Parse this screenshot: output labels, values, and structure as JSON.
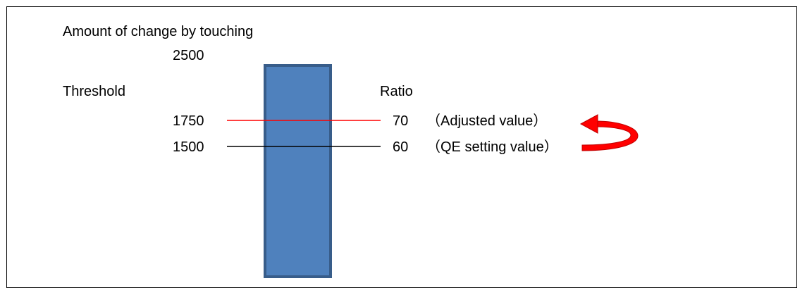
{
  "title": "Amount of change by touching",
  "max_value": "2500",
  "threshold_label": "Threshold",
  "ratio_label": "Ratio",
  "adjusted": {
    "threshold": "1750",
    "ratio": "70",
    "note": "（Adjusted value）"
  },
  "qe": {
    "threshold": "1500",
    "ratio": "60",
    "note": "（QE setting value）"
  },
  "colors": {
    "bar_fill": "#4f81bd",
    "bar_border": "#385d8a",
    "adjusted_line": "#ff0000",
    "qe_line": "#000000",
    "arrow": "#ff0000"
  }
}
